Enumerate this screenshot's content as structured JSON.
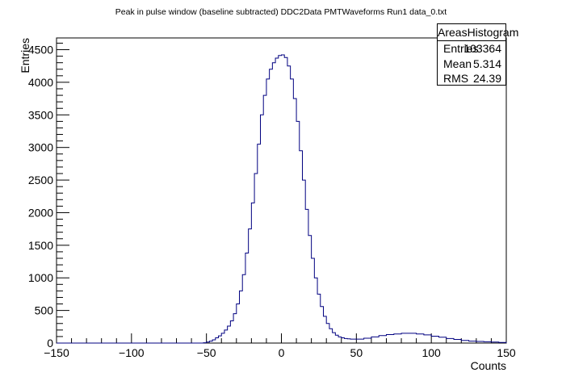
{
  "chart_data": {
    "type": "histogram",
    "title": "Peak in pulse window (baseline subtracted) DDC2Data PMTWaveforms Run1 data_0.txt",
    "xlabel": "Counts",
    "ylabel": "Entries",
    "xlim": [
      -150,
      150
    ],
    "ylim": [
      0,
      4680
    ],
    "x_ticks": [
      -150,
      -100,
      -50,
      0,
      50,
      100,
      150
    ],
    "y_ticks": [
      0,
      500,
      1000,
      1500,
      2000,
      2500,
      3000,
      3500,
      4000,
      4500
    ],
    "line_color": "#000080",
    "grid": false,
    "bin_width": 2,
    "bin_low_edges": [
      -52,
      -50,
      -48,
      -46,
      -44,
      -42,
      -40,
      -38,
      -36,
      -34,
      -32,
      -30,
      -28,
      -26,
      -24,
      -22,
      -20,
      -18,
      -16,
      -14,
      -12,
      -10,
      -8,
      -6,
      -4,
      -2,
      0,
      2,
      4,
      6,
      8,
      10,
      12,
      14,
      16,
      18,
      20,
      22,
      24,
      26,
      28,
      30,
      32,
      34,
      36,
      38,
      40,
      42,
      44,
      46,
      48,
      50,
      55,
      60,
      65,
      70,
      75,
      80,
      85,
      90,
      95,
      100,
      105,
      110,
      115,
      120,
      125,
      130,
      135,
      140,
      145
    ],
    "values": [
      5,
      15,
      30,
      50,
      80,
      110,
      150,
      200,
      260,
      340,
      450,
      600,
      800,
      1050,
      1380,
      1750,
      2150,
      2600,
      3050,
      3500,
      3800,
      4050,
      4200,
      4300,
      4370,
      4410,
      4420,
      4380,
      4250,
      4050,
      3750,
      3400,
      2950,
      2500,
      2050,
      1650,
      1300,
      1000,
      750,
      560,
      410,
      300,
      220,
      160,
      120,
      95,
      80,
      70,
      65,
      60,
      60,
      60,
      75,
      95,
      115,
      130,
      140,
      150,
      150,
      140,
      125,
      105,
      90,
      70,
      55,
      40,
      30,
      25,
      20,
      15,
      10
    ],
    "stats": {
      "name": "AreasHistogram",
      "rows": [
        {
          "label": "Entries",
          "value": "103364"
        },
        {
          "label": "Mean",
          "value": "5.314"
        },
        {
          "label": "RMS",
          "value": "24.39"
        }
      ]
    }
  }
}
